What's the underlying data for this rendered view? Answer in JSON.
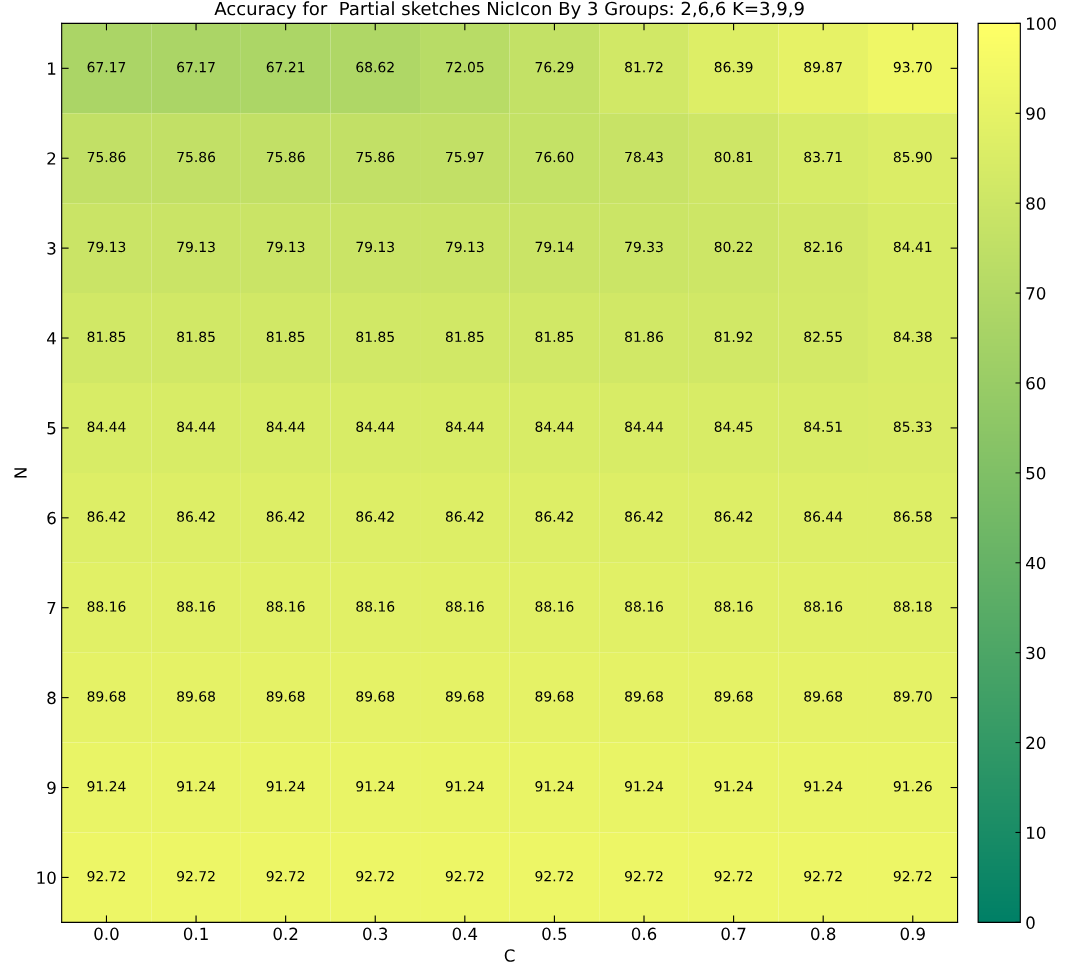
{
  "chart_data": {
    "type": "heatmap",
    "title": "Accuracy for  Partial sketches NicIcon By 3 Groups: 2,6,6 K=3,9,9",
    "xlabel": "C",
    "ylabel": "N",
    "categories": [
      "0.0",
      "0.1",
      "0.2",
      "0.3",
      "0.4",
      "0.5",
      "0.6",
      "0.7",
      "0.8",
      "0.9"
    ],
    "y_categories": [
      "1",
      "2",
      "3",
      "4",
      "5",
      "6",
      "7",
      "8",
      "9",
      "10"
    ],
    "cells": [
      [
        67.17,
        67.17,
        67.21,
        68.62,
        72.05,
        76.29,
        81.72,
        86.39,
        89.87,
        93.7
      ],
      [
        75.86,
        75.86,
        75.86,
        75.86,
        75.97,
        76.6,
        78.43,
        80.81,
        83.71,
        85.9
      ],
      [
        79.13,
        79.13,
        79.13,
        79.13,
        79.13,
        79.14,
        79.33,
        80.22,
        82.16,
        84.41
      ],
      [
        81.85,
        81.85,
        81.85,
        81.85,
        81.85,
        81.85,
        81.86,
        81.92,
        82.55,
        84.38
      ],
      [
        84.44,
        84.44,
        84.44,
        84.44,
        84.44,
        84.44,
        84.44,
        84.45,
        84.51,
        85.33
      ],
      [
        86.42,
        86.42,
        86.42,
        86.42,
        86.42,
        86.42,
        86.42,
        86.42,
        86.44,
        86.58
      ],
      [
        88.16,
        88.16,
        88.16,
        88.16,
        88.16,
        88.16,
        88.16,
        88.16,
        88.16,
        88.18
      ],
      [
        89.68,
        89.68,
        89.68,
        89.68,
        89.68,
        89.68,
        89.68,
        89.68,
        89.68,
        89.7
      ],
      [
        91.24,
        91.24,
        91.24,
        91.24,
        91.24,
        91.24,
        91.24,
        91.24,
        91.24,
        91.26
      ],
      [
        92.72,
        92.72,
        92.72,
        92.72,
        92.72,
        92.72,
        92.72,
        92.72,
        92.72,
        92.72
      ]
    ],
    "cell_labels": [
      [
        "67.17",
        "67.17",
        "67.21",
        "68.62",
        "72.05",
        "76.29",
        "81.72",
        "86.39",
        "89.87",
        "93.70"
      ],
      [
        "75.86",
        "75.86",
        "75.86",
        "75.86",
        "75.97",
        "76.60",
        "78.43",
        "80.81",
        "83.71",
        "85.90"
      ],
      [
        "79.13",
        "79.13",
        "79.13",
        "79.13",
        "79.13",
        "79.14",
        "79.33",
        "80.22",
        "82.16",
        "84.41"
      ],
      [
        "81.85",
        "81.85",
        "81.85",
        "81.85",
        "81.85",
        "81.85",
        "81.86",
        "81.92",
        "82.55",
        "84.38"
      ],
      [
        "84.44",
        "84.44",
        "84.44",
        "84.44",
        "84.44",
        "84.44",
        "84.44",
        "84.45",
        "84.51",
        "85.33"
      ],
      [
        "86.42",
        "86.42",
        "86.42",
        "86.42",
        "86.42",
        "86.42",
        "86.42",
        "86.42",
        "86.44",
        "86.58"
      ],
      [
        "88.16",
        "88.16",
        "88.16",
        "88.16",
        "88.16",
        "88.16",
        "88.16",
        "88.16",
        "88.16",
        "88.18"
      ],
      [
        "89.68",
        "89.68",
        "89.68",
        "89.68",
        "89.68",
        "89.68",
        "89.68",
        "89.68",
        "89.68",
        "89.70"
      ],
      [
        "91.24",
        "91.24",
        "91.24",
        "91.24",
        "91.24",
        "91.24",
        "91.24",
        "91.24",
        "91.24",
        "91.26"
      ],
      [
        "92.72",
        "92.72",
        "92.72",
        "92.72",
        "92.72",
        "92.72",
        "92.72",
        "92.72",
        "92.72",
        "92.72"
      ]
    ],
    "clim": [
      0,
      100
    ],
    "cticks": [
      0,
      10,
      20,
      30,
      40,
      50,
      60,
      70,
      80,
      90,
      100
    ]
  }
}
